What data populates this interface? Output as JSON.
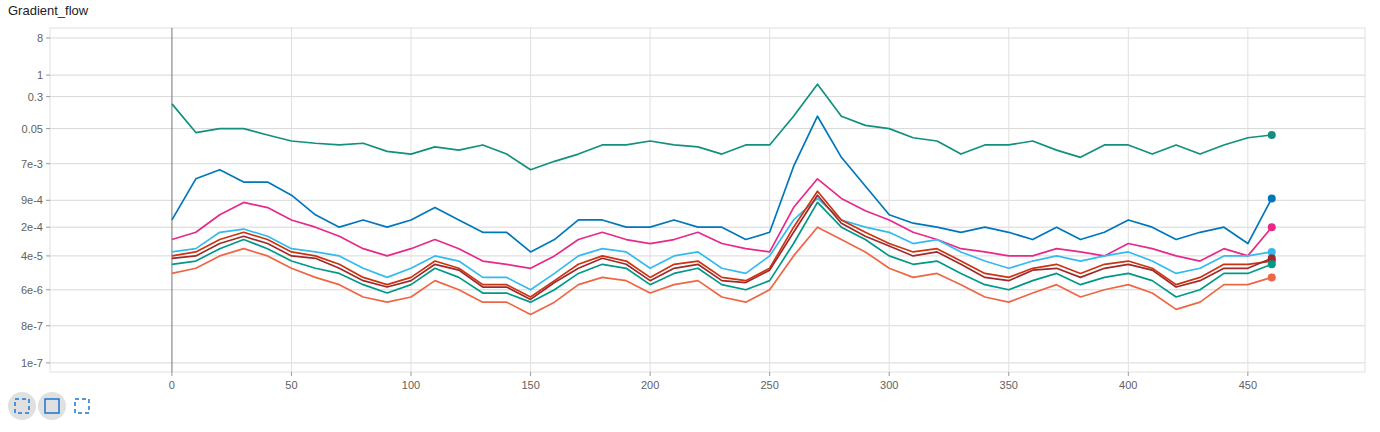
{
  "chart_data": {
    "type": "line",
    "title": "Gradient_flow",
    "log": "y",
    "grid": true,
    "marker": "circle",
    "xlim": [
      -51,
      499
    ],
    "ylim": [
      6e-08,
      14
    ],
    "xticks": [
      0,
      50,
      100,
      150,
      200,
      250,
      300,
      350,
      400,
      450
    ],
    "yticks": [
      8,
      1,
      0.3,
      0.05,
      {
        "value": 0.007,
        "label": "7e-3"
      },
      {
        "value": 0.0009,
        "label": "9e-4"
      },
      {
        "value": 0.0002,
        "label": "2e-4"
      },
      {
        "value": 4e-05,
        "label": "4e-5"
      },
      {
        "value": 6e-06,
        "label": "6e-6"
      },
      {
        "value": 8e-07,
        "label": "8e-7"
      },
      {
        "value": 1e-07,
        "label": "1e-7"
      }
    ],
    "x": [
      0,
      10,
      20,
      30,
      40,
      50,
      60,
      70,
      80,
      90,
      100,
      110,
      120,
      130,
      140,
      150,
      160,
      170,
      180,
      190,
      200,
      210,
      220,
      230,
      240,
      250,
      260,
      270,
      280,
      290,
      300,
      310,
      320,
      330,
      340,
      350,
      360,
      370,
      380,
      390,
      400,
      410,
      420,
      430,
      440,
      450,
      460
    ],
    "series": [
      {
        "color": "#12907e",
        "values": [
          0.2,
          0.04,
          0.05,
          0.05,
          0.035,
          0.025,
          0.022,
          0.02,
          0.022,
          0.014,
          0.012,
          0.018,
          0.015,
          0.02,
          0.012,
          0.005,
          0.008,
          0.012,
          0.02,
          0.02,
          0.025,
          0.02,
          0.018,
          0.012,
          0.02,
          0.02,
          0.1,
          0.6,
          0.1,
          0.06,
          0.05,
          0.03,
          0.025,
          0.012,
          0.02,
          0.02,
          0.025,
          0.015,
          0.01,
          0.02,
          0.02,
          0.012,
          0.02,
          0.012,
          0.02,
          0.03,
          0.035
        ]
      },
      {
        "color": "#0077bb",
        "values": [
          0.0003,
          0.003,
          0.005,
          0.0025,
          0.0025,
          0.0012,
          0.0004,
          0.0002,
          0.0003,
          0.0002,
          0.0003,
          0.0006,
          0.0003,
          0.00015,
          0.00015,
          5e-05,
          0.0001,
          0.0003,
          0.0003,
          0.0002,
          0.0002,
          0.0003,
          0.0002,
          0.0002,
          0.0001,
          0.00015,
          0.006,
          0.1,
          0.01,
          0.002,
          0.0004,
          0.00025,
          0.0002,
          0.00015,
          0.0002,
          0.00015,
          0.0001,
          0.0002,
          0.0001,
          0.00015,
          0.0003,
          0.0002,
          0.0001,
          0.00015,
          0.0002,
          8e-05,
          0.001
        ]
      },
      {
        "color": "#e7298a",
        "values": [
          0.0001,
          0.00015,
          0.0004,
          0.0008,
          0.0006,
          0.0003,
          0.0002,
          0.00012,
          6e-05,
          4e-05,
          6e-05,
          0.0001,
          6e-05,
          3e-05,
          2.5e-05,
          2e-05,
          4e-05,
          0.0001,
          0.00015,
          0.0001,
          8e-05,
          0.0001,
          0.00015,
          8e-05,
          6e-05,
          5e-05,
          0.0006,
          0.003,
          0.001,
          0.0005,
          0.0003,
          0.00015,
          0.0001,
          6e-05,
          5e-05,
          4e-05,
          4e-05,
          6e-05,
          5e-05,
          4e-05,
          8e-05,
          6e-05,
          4e-05,
          3e-05,
          6e-05,
          4e-05,
          0.0002
        ]
      },
      {
        "color": "#33bbee",
        "values": [
          5e-05,
          6e-05,
          0.00015,
          0.00018,
          0.00012,
          6e-05,
          5e-05,
          4e-05,
          2e-05,
          1.2e-05,
          2e-05,
          4e-05,
          3e-05,
          1.2e-05,
          1.2e-05,
          6e-06,
          1.5e-05,
          4e-05,
          6e-05,
          5e-05,
          2e-05,
          4e-05,
          5e-05,
          2e-05,
          1.5e-05,
          4e-05,
          0.0003,
          0.001,
          0.0003,
          0.0002,
          0.00015,
          8e-05,
          0.0001,
          5e-05,
          3e-05,
          2e-05,
          3e-05,
          4e-05,
          3e-05,
          4e-05,
          5e-05,
          3e-05,
          1.5e-05,
          2e-05,
          4e-05,
          4e-05,
          5e-05
        ]
      },
      {
        "color": "#cc3311",
        "values": [
          4e-05,
          5e-05,
          0.0001,
          0.00015,
          0.0001,
          5e-05,
          4e-05,
          2.5e-05,
          1.2e-05,
          8e-06,
          1.2e-05,
          3e-05,
          2e-05,
          8e-06,
          8e-06,
          4e-06,
          1e-05,
          2.5e-05,
          4e-05,
          3e-05,
          1.2e-05,
          2.5e-05,
          3e-05,
          1.2e-05,
          1e-05,
          2e-05,
          0.0002,
          0.0015,
          0.0003,
          0.00015,
          8e-05,
          5e-05,
          6e-05,
          3e-05,
          1.5e-05,
          1.2e-05,
          2e-05,
          2.5e-05,
          1.5e-05,
          2.5e-05,
          3e-05,
          2e-05,
          8e-06,
          1.2e-05,
          2.5e-05,
          2.5e-05,
          3e-05
        ]
      },
      {
        "color": "#9e2a2b",
        "values": [
          3.5e-05,
          4e-05,
          8e-05,
          0.00012,
          8e-05,
          4e-05,
          3.5e-05,
          2e-05,
          1e-05,
          7e-06,
          1e-05,
          2.5e-05,
          1.8e-05,
          7e-06,
          7e-06,
          3.5e-06,
          9e-06,
          2e-05,
          3.5e-05,
          2.5e-05,
          1e-05,
          2e-05,
          2.5e-05,
          1e-05,
          9e-06,
          1.8e-05,
          0.00015,
          0.0012,
          0.00025,
          0.00012,
          7e-05,
          4e-05,
          5e-05,
          2.5e-05,
          1.2e-05,
          1e-05,
          1.8e-05,
          2e-05,
          1.2e-05,
          2e-05,
          2.5e-05,
          1.8e-05,
          7e-06,
          1e-05,
          2e-05,
          2e-05,
          3.5e-05
        ]
      },
      {
        "color": "#009988",
        "values": [
          2.5e-05,
          3e-05,
          6e-05,
          0.0001,
          6e-05,
          3e-05,
          2e-05,
          1.5e-05,
          8e-06,
          5e-06,
          8e-06,
          2e-05,
          1.2e-05,
          5e-06,
          5e-06,
          3e-06,
          6e-06,
          1.5e-05,
          2.5e-05,
          2e-05,
          8e-06,
          1.5e-05,
          2e-05,
          8e-06,
          6e-06,
          1e-05,
          8e-05,
          0.0008,
          0.0002,
          0.0001,
          4e-05,
          2.5e-05,
          3e-05,
          1.5e-05,
          8e-06,
          6e-06,
          1e-05,
          1.5e-05,
          8e-06,
          1.2e-05,
          1.5e-05,
          1e-05,
          4e-06,
          6e-06,
          1.5e-05,
          1.5e-05,
          2.5e-05
        ]
      },
      {
        "color": "#ee6644",
        "values": [
          1.5e-05,
          2e-05,
          4e-05,
          6e-05,
          4e-05,
          2e-05,
          1.2e-05,
          8e-06,
          4e-06,
          3e-06,
          4e-06,
          1e-05,
          6e-06,
          3e-06,
          3e-06,
          1.5e-06,
          3e-06,
          8e-06,
          1.2e-05,
          1e-05,
          5e-06,
          8e-06,
          1e-05,
          4e-06,
          3e-06,
          6e-06,
          4e-05,
          0.0002,
          0.0001,
          5e-05,
          2e-05,
          1.2e-05,
          1.5e-05,
          8e-06,
          4e-06,
          3e-06,
          5e-06,
          8e-06,
          4e-06,
          6e-06,
          8e-06,
          5e-06,
          2e-06,
          3e-06,
          8e-06,
          8e-06,
          1.2e-05
        ]
      }
    ]
  }
}
